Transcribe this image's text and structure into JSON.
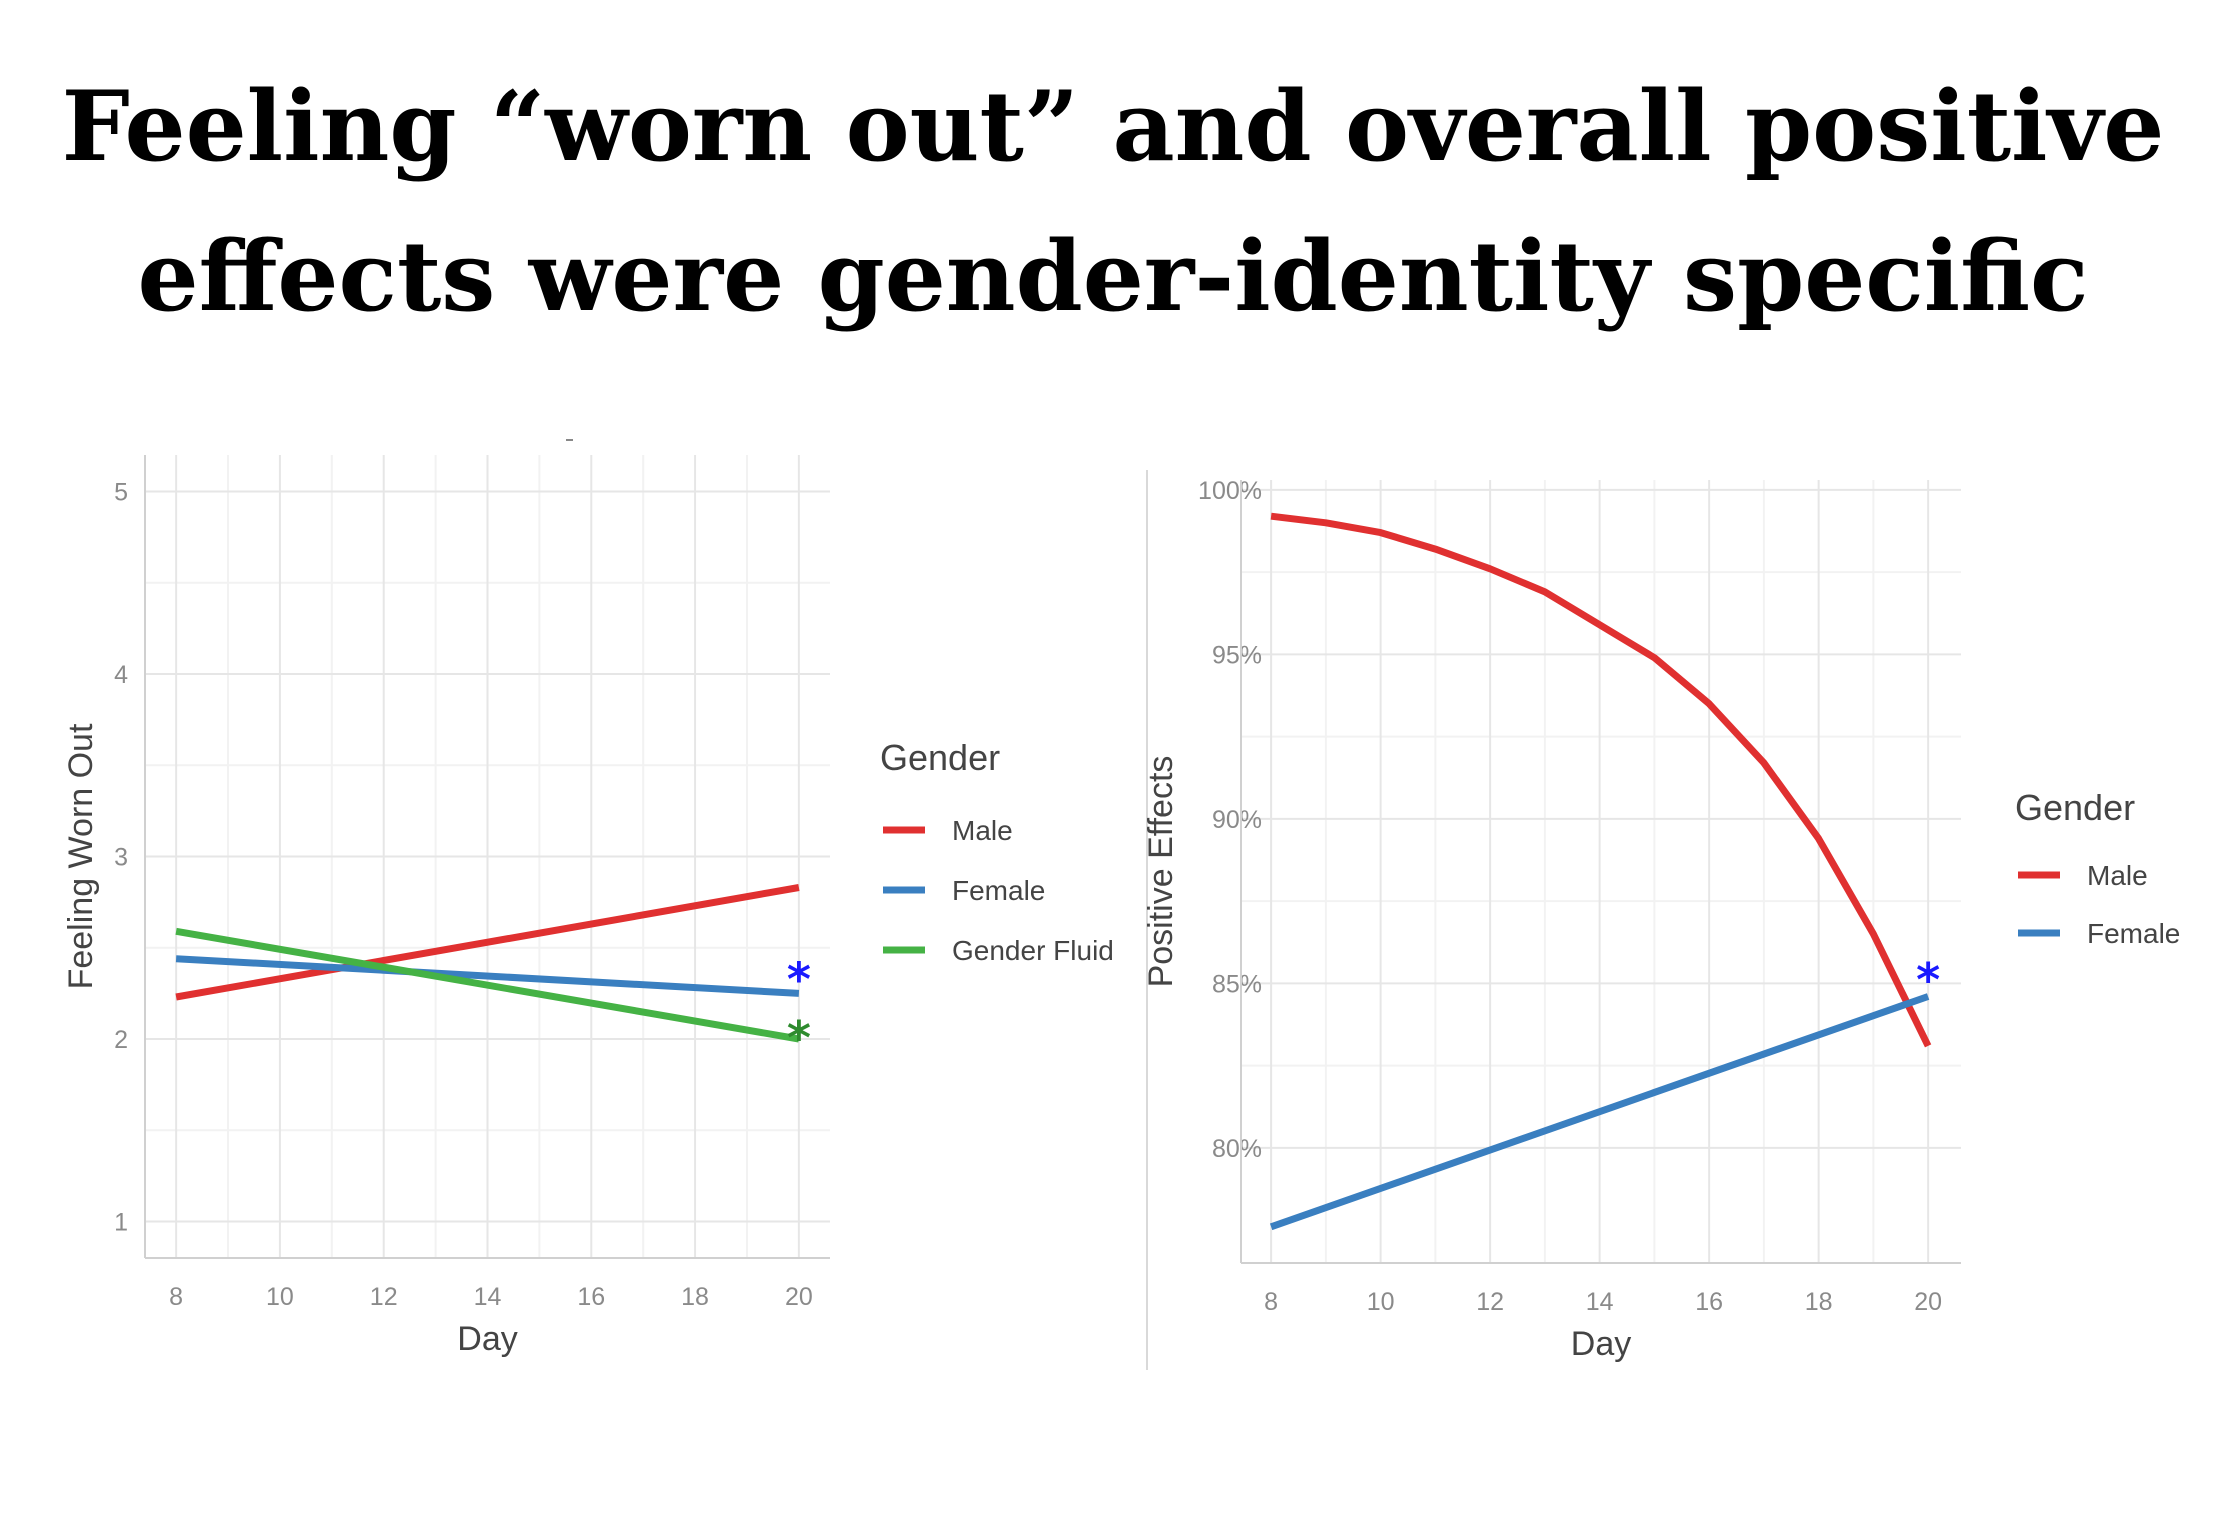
{
  "title": {
    "line1": "Feeling “worn out” and overall positive",
    "line2": "effects were gender-identity specific"
  },
  "chart_data": [
    {
      "type": "line",
      "xlabel": "Day",
      "ylabel": "Feeling Worn Out",
      "xlim": [
        7.4,
        20.6
      ],
      "ylim": [
        0.8,
        5.2
      ],
      "xticks": [
        8,
        10,
        12,
        14,
        16,
        18,
        20
      ],
      "yticks": [
        1,
        2,
        3,
        4,
        5
      ],
      "grid": true,
      "legend": {
        "title": "Gender",
        "position": "right"
      },
      "series": [
        {
          "name": "Male",
          "color": "#e03030",
          "x": [
            8,
            20
          ],
          "y": [
            2.23,
            2.83
          ]
        },
        {
          "name": "Female",
          "color": "#3a7fc0",
          "x": [
            8,
            20
          ],
          "y": [
            2.44,
            2.25
          ]
        },
        {
          "name": "Gender Fluid",
          "color": "#45b245",
          "x": [
            8,
            20
          ],
          "y": [
            2.59,
            2.0
          ]
        }
      ],
      "annotations": [
        {
          "text": "*",
          "x": 20,
          "y": 2.38,
          "color": "#1a1aff"
        },
        {
          "text": "*",
          "x": 20,
          "y": 2.06,
          "color": "#2e8b2e"
        }
      ]
    },
    {
      "type": "line",
      "xlabel": "Day",
      "ylabel": "Positive Effects",
      "xlim": [
        7.45,
        20.6
      ],
      "ylim": [
        76.5,
        100.3
      ],
      "xticks": [
        8,
        10,
        12,
        14,
        16,
        18,
        20
      ],
      "yticks": [
        80,
        85,
        90,
        95,
        100
      ],
      "ytick_labels": [
        "80%",
        "85%",
        "90%",
        "95%",
        "100%"
      ],
      "grid": true,
      "legend": {
        "title": "Gender",
        "position": "right"
      },
      "series": [
        {
          "name": "Male",
          "color": "#e03030",
          "x": [
            8,
            9,
            10,
            11,
            12,
            13,
            14,
            15,
            16,
            17,
            18,
            19,
            20
          ],
          "y": [
            99.2,
            99.0,
            98.7,
            98.2,
            97.6,
            96.9,
            95.9,
            94.9,
            93.5,
            91.7,
            89.4,
            86.5,
            83.1
          ]
        },
        {
          "name": "Female",
          "color": "#3a7fc0",
          "x": [
            8,
            20
          ],
          "y": [
            77.6,
            84.6
          ]
        }
      ],
      "annotations": [
        {
          "text": "*",
          "x": 20,
          "y": 85.4,
          "color": "#1a1aff"
        }
      ]
    }
  ]
}
